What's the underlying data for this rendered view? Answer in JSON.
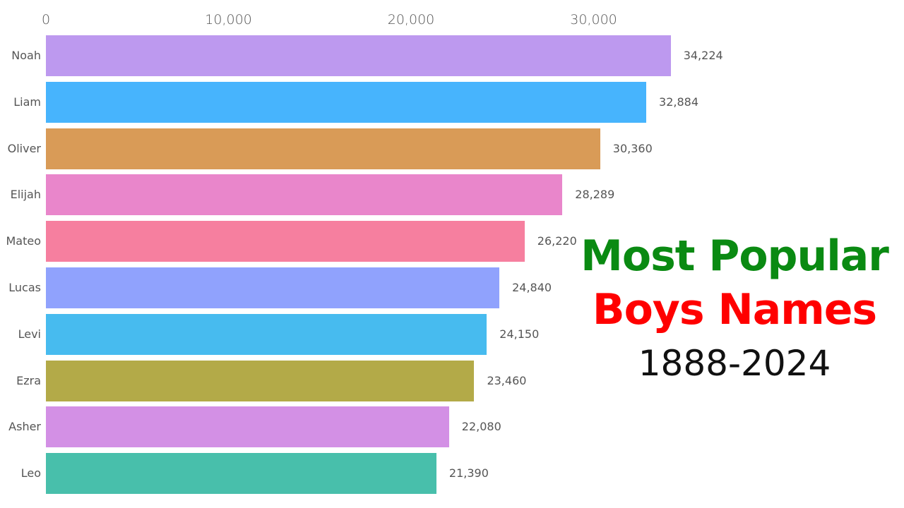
{
  "chart_data": {
    "type": "bar",
    "orientation": "horizontal",
    "title": "Most Popular Boys Names",
    "subtitle": "1888-2024",
    "xlabel": "",
    "ylabel": "",
    "xlim": [
      0,
      35000
    ],
    "axis_position": "top",
    "grid": false,
    "legend": null,
    "x_ticks": [
      "0",
      "10,000",
      "20,000",
      "30,000"
    ],
    "x_tick_values": [
      0,
      10000,
      20000,
      30000
    ],
    "categories": [
      "Noah",
      "Liam",
      "Oliver",
      "Elijah",
      "Mateo",
      "Lucas",
      "Levi",
      "Ezra",
      "Asher",
      "Leo"
    ],
    "values": [
      34224,
      32884,
      30360,
      28289,
      26220,
      24840,
      24150,
      23460,
      22080,
      21390
    ],
    "value_labels": [
      "34,224",
      "32,884",
      "30,360",
      "28,289",
      "26,220",
      "24,840",
      "24,150",
      "23,460",
      "22,080",
      "21,390"
    ],
    "colors": [
      "#bd99ef",
      "#47b4fd",
      "#d99b57",
      "#e986cb",
      "#f67f9f",
      "#90a2fd",
      "#47bbef",
      "#b3aa48",
      "#d390e5",
      "#48bfab"
    ]
  },
  "title": {
    "line1": "Most Popular",
    "line2": "Boys Names",
    "line3": "1888-2024",
    "line1_color": "#0a8a12",
    "line2_color": "#ff0000",
    "line3_color": "#111111"
  }
}
